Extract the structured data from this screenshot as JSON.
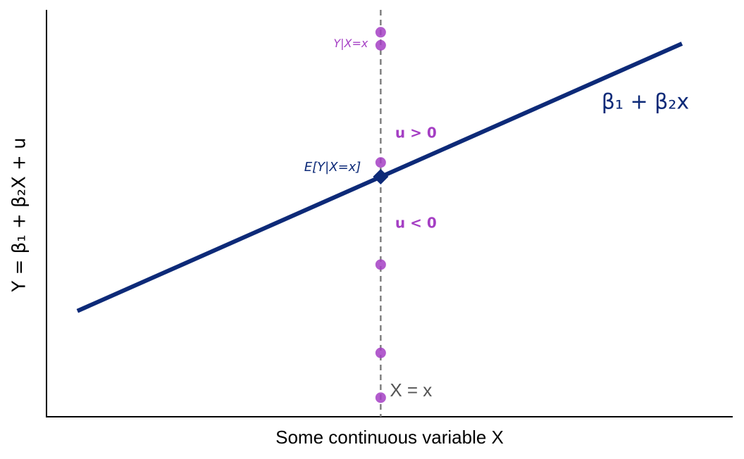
{
  "chart_data": {
    "type": "line",
    "x_label": "Some continuous variable X",
    "y_label": "Y = β₁ + β₂X + u",
    "xlim": [
      0,
      10
    ],
    "ylim": [
      0,
      10
    ],
    "series": [
      {
        "name": "β₁ + β₂x",
        "color": "#0d2a78",
        "x": [
          0.45,
          9.26
        ],
        "values": [
          2.6,
          9.17
        ]
      }
    ],
    "points": {
      "color": "#a53fc4",
      "x": [
        4.87,
        4.87,
        4.87,
        4.87,
        4.87,
        4.87
      ],
      "values": [
        9.45,
        9.13,
        6.25,
        3.74,
        1.57,
        0.47
      ]
    },
    "expected": {
      "label": "E[Y|X=x]",
      "x": 4.87,
      "value": 5.9,
      "color": "#0d2a78"
    },
    "reference_line": {
      "label": "X = x",
      "x": 4.87,
      "color": "#808080"
    },
    "annotations": [
      {
        "text": "Y|X=x",
        "color": "#a53fc4"
      },
      {
        "text": "u > 0",
        "color": "#a53fc4"
      },
      {
        "text": "u < 0",
        "color": "#a53fc4"
      }
    ]
  }
}
